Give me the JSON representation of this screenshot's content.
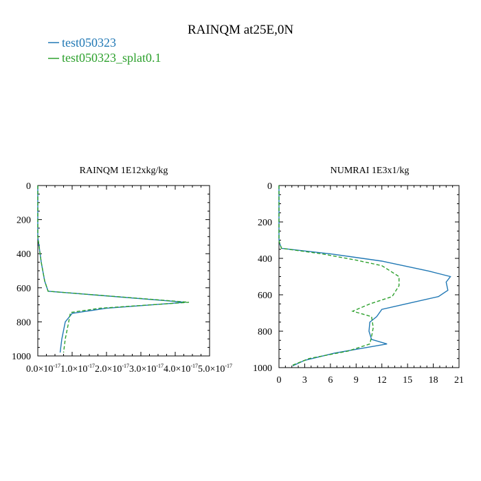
{
  "title": "RAINQM at25E,0N",
  "legend": [
    {
      "label": "test050323",
      "color": "#1f77b4",
      "dash": "solid"
    },
    {
      "label": "test050323_splat0.1",
      "color": "#2ca02c",
      "dash": "dashed"
    }
  ],
  "chart_data": [
    {
      "type": "line",
      "title": "RAINQM  1E12xkg/kg",
      "xlim": [
        0,
        5e-17
      ],
      "ylim": [
        1000,
        0
      ],
      "x_ticks": [
        "0.0×10",
        "1.0×10",
        "2.0×10",
        "3.0×10",
        "4.0×10",
        "5.0×10"
      ],
      "x_tick_exp": "-17",
      "y_ticks": [
        "0",
        "200",
        "400",
        "600",
        "800",
        "1000"
      ],
      "series": [
        {
          "name": "test050323",
          "x": [
            0,
            0,
            1e-18,
            2e-18,
            3e-18,
            4.3e-17,
            2e-17,
            1e-17,
            8e-18,
            7e-18,
            6.5e-18
          ],
          "y": [
            0,
            300,
            450,
            560,
            620,
            685,
            720,
            750,
            800,
            900,
            980
          ]
        },
        {
          "name": "test050323_splat0.1",
          "x": [
            0,
            0,
            1e-18,
            2e-18,
            3e-18,
            4.4e-17,
            1.8e-17,
            9.5e-18,
            9e-18,
            8e-18,
            7.5e-18
          ],
          "y": [
            0,
            300,
            450,
            560,
            620,
            685,
            720,
            745,
            800,
            900,
            980
          ]
        }
      ]
    },
    {
      "type": "line",
      "title": "NUMRAI  1E3x1/kg",
      "xlim": [
        0,
        21
      ],
      "ylim": [
        1000,
        0
      ],
      "x_ticks": [
        "0",
        "3",
        "6",
        "9",
        "12",
        "15",
        "18",
        "21"
      ],
      "y_ticks": [
        "0",
        "200",
        "400",
        "600",
        "800",
        "1000"
      ],
      "series": [
        {
          "name": "test050323",
          "x": [
            0,
            0,
            0.1,
            0.3,
            6,
            12,
            17.5,
            20,
            19.5,
            19.7,
            18.6,
            14.8,
            12,
            11.4,
            10.6,
            10.5,
            10.8,
            12.6,
            6.5,
            3,
            1.6
          ],
          "y": [
            0,
            300,
            320,
            345,
            375,
            415,
            470,
            500,
            530,
            575,
            610,
            650,
            680,
            720,
            750,
            800,
            845,
            870,
            920,
            960,
            990
          ]
        },
        {
          "name": "test050323_splat0.1",
          "x": [
            0,
            0,
            0.1,
            0.3,
            5,
            9,
            12,
            14,
            14,
            13.2,
            10.6,
            8.6,
            10.8,
            11,
            10.8,
            10.6,
            8,
            3.5,
            1.4
          ],
          "y": [
            0,
            300,
            320,
            345,
            375,
            410,
            440,
            500,
            550,
            610,
            650,
            690,
            720,
            780,
            830,
            870,
            910,
            950,
            990
          ]
        }
      ]
    }
  ]
}
